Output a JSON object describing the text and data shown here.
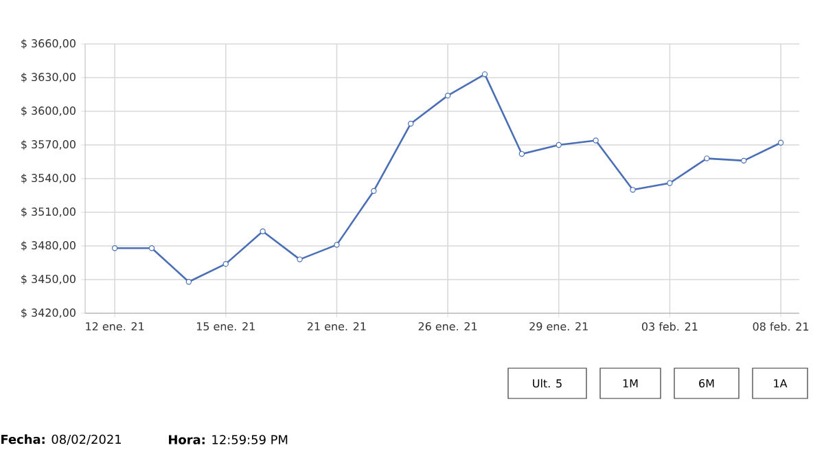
{
  "chart_data": {
    "type": "line",
    "categories": [
      "12 ene. 21",
      null,
      null,
      "15 ene. 21",
      null,
      null,
      "21 ene. 21",
      null,
      null,
      "26 ene. 21",
      null,
      null,
      "29 ene. 21",
      null,
      null,
      "03 feb. 21",
      null,
      null,
      "08 feb. 21"
    ],
    "values": [
      3478,
      3478,
      3448,
      3464,
      3493,
      3468,
      3481,
      3529,
      3589,
      3614,
      3633,
      3562,
      3570,
      3574,
      3530,
      3536,
      3558,
      3556,
      3572
    ],
    "color": "#4a6fb5",
    "marker": "circle",
    "line_style": "solid",
    "grid": true,
    "ylim": [
      3420,
      3660
    ],
    "yticks": [
      {
        "value": 3420,
        "label": "$ 3420,00"
      },
      {
        "value": 3450,
        "label": "$ 3450,00"
      },
      {
        "value": 3480,
        "label": "$ 3480,00"
      },
      {
        "value": 3510,
        "label": "$ 3510,00"
      },
      {
        "value": 3540,
        "label": "$ 3540,00"
      },
      {
        "value": 3570,
        "label": "$ 3570,00"
      },
      {
        "value": 3600,
        "label": "$ 3600,00"
      },
      {
        "value": 3630,
        "label": "$ 3630,00"
      },
      {
        "value": 3660,
        "label": "$ 3660,00"
      }
    ],
    "annotations": [
      "Ult. 5",
      "1M",
      "6M",
      "1A",
      "**Fecha:** 08/02/2021",
      "**Hora:** 12:59:59 PM"
    ]
  }
}
